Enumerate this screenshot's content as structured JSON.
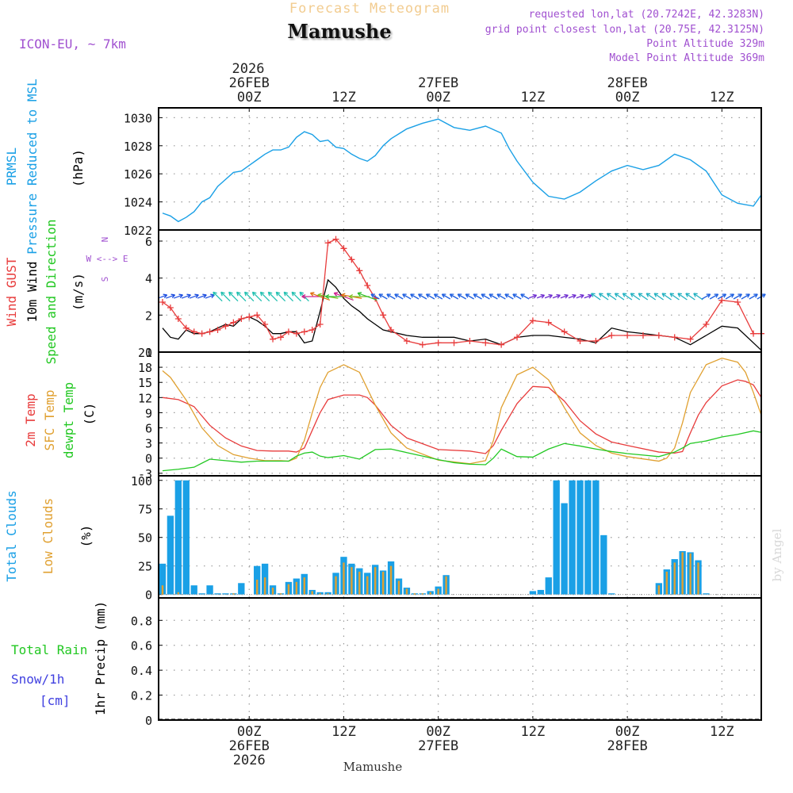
{
  "header": {
    "subtitle": "Forecast Meteogram",
    "location": "Mamushe",
    "model": "ICON-EU, ~ 7km",
    "requested": "requested lon,lat (20.7242E, 42.3283N)",
    "grid_point": "grid point closest lon,lat (20.75E, 42.3125N)",
    "point_altitude": "Point Altitude 329m",
    "model_altitude": "Model Point Altitude 369m",
    "credit": "by Angel",
    "footer_location": "Mamushe"
  },
  "colors": {
    "pressure": "#1aa0e6",
    "gust": "#e83c3c",
    "wind": "#000000",
    "temp": "#e83c3c",
    "sfc_temp": "#e0a030",
    "dewpoint": "#22c822",
    "total_clouds": "#1aa0e6",
    "low_clouds": "#e0a030",
    "rain": "#22c822",
    "snow": "#4040e0",
    "labels_violet": "#a050d0"
  },
  "time_axis": {
    "top_year": "2026",
    "ticks": [
      {
        "hour": 0,
        "top": [
          "26FEB",
          "00Z"
        ],
        "bottom": [
          "00Z",
          "26FEB",
          "2026"
        ]
      },
      {
        "hour": 12,
        "top": [
          "12Z"
        ],
        "bottom": [
          "12Z"
        ]
      },
      {
        "hour": 24,
        "top": [
          "27FEB",
          "00Z"
        ],
        "bottom": [
          "00Z",
          "27FEB"
        ]
      },
      {
        "hour": 36,
        "top": [
          "12Z"
        ],
        "bottom": [
          "12Z"
        ]
      },
      {
        "hour": 48,
        "top": [
          "28FEB",
          "00Z"
        ],
        "bottom": [
          "00Z",
          "28FEB"
        ]
      },
      {
        "hour": 60,
        "top": [
          "12Z"
        ],
        "bottom": [
          "12Z"
        ]
      }
    ],
    "start_hour": -11.5,
    "end_hour": 65
  },
  "chart_data": [
    {
      "type": "line",
      "panel": "pressure",
      "ylabel_lines": [
        "PRMSL",
        "Pressure Reduced to MSL"
      ],
      "unit": "(hPa)",
      "ylim": [
        1022,
        1030.7
      ],
      "yticks": [
        1022,
        1024,
        1026,
        1028,
        1030
      ],
      "x": [
        -11,
        -10,
        -9,
        -8,
        -7,
        -6,
        -5,
        -4,
        -3,
        -2,
        -1,
        0,
        1,
        2,
        3,
        4,
        5,
        6,
        7,
        8,
        9,
        10,
        11,
        12,
        13,
        14,
        15,
        16,
        17,
        18,
        20,
        22,
        24,
        26,
        28,
        30,
        32,
        33,
        34,
        36,
        37,
        38,
        40,
        42,
        44,
        46,
        48,
        50,
        52,
        54,
        56,
        58,
        60,
        62,
        64,
        65
      ],
      "values": [
        1023.2,
        1023.0,
        1022.6,
        1022.9,
        1023.3,
        1024.0,
        1024.3,
        1025.1,
        1025.6,
        1026.1,
        1026.2,
        1026.6,
        1027.0,
        1027.4,
        1027.7,
        1027.7,
        1027.9,
        1028.6,
        1029.0,
        1028.8,
        1028.3,
        1028.4,
        1027.9,
        1027.8,
        1027.4,
        1027.1,
        1026.9,
        1027.3,
        1028.0,
        1028.5,
        1029.2,
        1029.6,
        1029.9,
        1029.3,
        1029.1,
        1029.4,
        1028.9,
        1027.8,
        1026.9,
        1025.4,
        1024.9,
        1024.4,
        1024.2,
        1024.7,
        1025.5,
        1026.2,
        1026.6,
        1026.3,
        1026.6,
        1027.4,
        1027.0,
        1026.2,
        1024.5,
        1023.9,
        1023.7,
        1024.5
      ]
    },
    {
      "type": "line",
      "panel": "wind",
      "ylabel_lines": [
        "Wind GUST",
        "10m Wind",
        "Speed and Direction"
      ],
      "unit": "(m/s)",
      "compass": [
        "N",
        "W <--> E",
        "S"
      ],
      "ylim": [
        0,
        6.6
      ],
      "yticks": [
        0,
        2,
        4,
        6
      ],
      "series": [
        {
          "name": "Wind GUST",
          "x": [
            -11,
            -10,
            -9,
            -8,
            -7,
            -6,
            -5,
            -4,
            -3,
            -2,
            -1,
            0,
            1,
            2,
            3,
            4,
            5,
            6,
            7,
            8,
            9,
            10,
            11,
            12,
            13,
            14,
            15,
            16,
            17,
            18,
            20,
            22,
            24,
            26,
            28,
            30,
            32,
            34,
            36,
            38,
            40,
            42,
            44,
            46,
            48,
            50,
            52,
            54,
            56,
            58,
            60,
            62,
            64,
            65
          ],
          "values": [
            2.7,
            2.4,
            1.8,
            1.3,
            1.1,
            1.0,
            1.1,
            1.2,
            1.4,
            1.6,
            1.8,
            1.9,
            2.0,
            1.5,
            0.7,
            0.8,
            1.1,
            1.0,
            1.1,
            1.2,
            1.5,
            5.9,
            6.1,
            5.6,
            5.0,
            4.4,
            3.6,
            2.9,
            2.0,
            1.2,
            0.6,
            0.4,
            0.5,
            0.5,
            0.6,
            0.5,
            0.4,
            0.8,
            1.7,
            1.6,
            1.1,
            0.6,
            0.6,
            0.9,
            0.9,
            0.9,
            0.9,
            0.8,
            0.7,
            1.5,
            2.8,
            2.7,
            1.0,
            1.0
          ]
        },
        {
          "name": "10m Wind",
          "x": [
            -11,
            -10,
            -9,
            -8,
            -7,
            -6,
            -5,
            -4,
            -3,
            -2,
            -1,
            0,
            1,
            2,
            3,
            4,
            5,
            6,
            7,
            8,
            9,
            10,
            11,
            12,
            13,
            14,
            15,
            16,
            17,
            18,
            20,
            22,
            24,
            26,
            28,
            30,
            32,
            34,
            36,
            38,
            40,
            42,
            44,
            46,
            48,
            50,
            52,
            54,
            56,
            58,
            60,
            62,
            64,
            65
          ],
          "values": [
            1.3,
            0.8,
            0.7,
            1.2,
            1.0,
            1.0,
            1.1,
            1.3,
            1.5,
            1.4,
            1.8,
            1.9,
            1.7,
            1.4,
            1.0,
            1.0,
            1.1,
            1.1,
            0.5,
            0.6,
            2.2,
            3.9,
            3.5,
            2.9,
            2.5,
            2.2,
            1.8,
            1.5,
            1.2,
            1.1,
            0.9,
            0.8,
            0.8,
            0.8,
            0.6,
            0.7,
            0.4,
            0.8,
            0.9,
            0.9,
            0.8,
            0.7,
            0.5,
            1.3,
            1.1,
            1.0,
            0.9,
            0.8,
            0.4,
            0.9,
            1.4,
            1.3,
            0.5,
            0.1
          ]
        }
      ]
    },
    {
      "type": "line",
      "panel": "temperature",
      "ylabel_lines": [
        "2m Temp",
        "SFC Temp",
        "dewpt Temp"
      ],
      "unit": "(C)",
      "ylim": [
        -3.5,
        21
      ],
      "yticks": [
        -3,
        0,
        3,
        6,
        9,
        12,
        15,
        18,
        21
      ],
      "series": [
        {
          "name": "2m Temp",
          "x": [
            -11,
            -9,
            -7,
            -5,
            -3,
            -1,
            1,
            3,
            5,
            6,
            7,
            8,
            9,
            10,
            12,
            14,
            15,
            16,
            18,
            20,
            24,
            28,
            30,
            31,
            32,
            34,
            36,
            38,
            40,
            42,
            44,
            46,
            48,
            52,
            54,
            55,
            56,
            57,
            58,
            60,
            62,
            63,
            64,
            65
          ],
          "values": [
            12.0,
            11.6,
            10.2,
            6.5,
            4.0,
            2.4,
            1.5,
            1.4,
            1.4,
            1.2,
            2.0,
            5.5,
            9.0,
            11.6,
            12.5,
            12.5,
            12.0,
            10.5,
            6.5,
            4.0,
            1.7,
            1.4,
            0.9,
            2.5,
            5.5,
            10.8,
            14.2,
            14.0,
            11.3,
            7.4,
            4.8,
            3.2,
            2.5,
            1.2,
            1.0,
            1.3,
            5.0,
            8.5,
            11.0,
            14.3,
            15.5,
            15.2,
            14.5,
            12.0
          ]
        },
        {
          "name": "SFC Temp",
          "x": [
            -11,
            -10,
            -8,
            -6,
            -4,
            -2,
            0,
            2,
            4,
            5,
            6,
            7,
            8,
            9,
            10,
            12,
            14,
            16,
            18,
            20,
            24,
            28,
            30,
            31,
            32,
            34,
            36,
            38,
            40,
            42,
            44,
            46,
            48,
            52,
            53,
            54,
            55,
            56,
            58,
            60,
            62,
            63,
            64,
            65
          ],
          "values": [
            17.3,
            16.0,
            11.5,
            6.0,
            2.5,
            0.7,
            0.0,
            -0.5,
            -0.5,
            -0.6,
            0.0,
            3.5,
            9.0,
            14.0,
            17.0,
            18.5,
            17.0,
            10.5,
            5.0,
            2.0,
            -0.4,
            -1.1,
            -0.5,
            3.5,
            10.0,
            16.5,
            18.0,
            15.5,
            10.0,
            5.0,
            2.5,
            1.0,
            0.3,
            -0.6,
            0.0,
            2.0,
            7.0,
            13.0,
            18.5,
            19.8,
            19.0,
            17.0,
            13.0,
            8.5
          ]
        },
        {
          "name": "dewpt Temp",
          "x": [
            -11,
            -9,
            -7,
            -5,
            -3,
            -1,
            1,
            3,
            5,
            6,
            7,
            8,
            9,
            10,
            12,
            14,
            16,
            18,
            20,
            22,
            24,
            26,
            28,
            30,
            31,
            32,
            34,
            36,
            38,
            40,
            42,
            44,
            46,
            48,
            50,
            52,
            54,
            55,
            56,
            58,
            60,
            62,
            64,
            65
          ],
          "values": [
            -2.5,
            -2.2,
            -1.8,
            -0.2,
            -0.5,
            -0.8,
            -0.6,
            -0.6,
            -0.6,
            0.4,
            1.0,
            1.2,
            0.4,
            0.1,
            0.5,
            -0.2,
            1.7,
            1.8,
            1.1,
            0.4,
            -0.3,
            -0.9,
            -1.2,
            -1.3,
            0.0,
            1.8,
            0.3,
            0.2,
            1.8,
            2.9,
            2.4,
            1.8,
            1.3,
            0.9,
            0.6,
            0.3,
            1.2,
            2.0,
            2.9,
            3.4,
            4.2,
            4.7,
            5.4,
            5.1
          ]
        }
      ]
    },
    {
      "type": "bar",
      "panel": "clouds",
      "ylabel_lines": [
        "Total Clouds",
        "Low Clouds"
      ],
      "unit": "(%)",
      "ylim": [
        -3,
        104
      ],
      "yticks": [
        0,
        25,
        50,
        75,
        100
      ],
      "series": [
        {
          "name": "Total Clouds",
          "x": [
            -11,
            -10,
            -9,
            -8,
            -7,
            -6,
            -5,
            -4,
            -3,
            -2,
            -1,
            0,
            1,
            2,
            3,
            4,
            5,
            6,
            7,
            8,
            9,
            10,
            11,
            12,
            13,
            14,
            15,
            16,
            17,
            18,
            19,
            20,
            21,
            22,
            23,
            24,
            25,
            36,
            37,
            38,
            39,
            40,
            41,
            42,
            43,
            44,
            45,
            46,
            52,
            53,
            54,
            55,
            56,
            57,
            58
          ],
          "values": [
            27,
            69,
            100,
            100,
            8,
            1,
            8,
            1,
            1,
            1,
            10,
            0,
            25,
            27,
            8,
            1,
            11,
            14,
            18,
            4,
            2,
            2,
            19,
            33,
            27,
            23,
            19,
            26,
            21,
            29,
            14,
            6,
            1,
            1,
            3,
            7,
            17,
            3,
            4,
            15,
            100,
            80,
            100,
            100,
            100,
            100,
            52,
            1,
            10,
            22,
            31,
            38,
            37,
            30,
            1
          ]
        },
        {
          "name": "Low Clouds",
          "x": [
            -11,
            -9,
            -2,
            0,
            1,
            2,
            3,
            4,
            5,
            6,
            7,
            8,
            9,
            10,
            11,
            12,
            13,
            14,
            15,
            16,
            17,
            18,
            19,
            20,
            21,
            22,
            23,
            24,
            25,
            52,
            53,
            54,
            55,
            56,
            57
          ],
          "values": [
            8,
            2,
            1,
            0,
            13,
            15,
            6,
            1,
            9,
            11,
            15,
            3,
            1,
            1,
            16,
            28,
            24,
            20,
            16,
            24,
            20,
            25,
            12,
            5,
            1,
            1,
            2,
            5,
            16,
            8,
            20,
            28,
            37,
            36,
            28
          ]
        }
      ]
    },
    {
      "type": "bar",
      "panel": "precipitation",
      "ylabel_lines": [
        "Total Rain",
        "Snow/1h",
        "[cm]"
      ],
      "unit": "1hr Precip (mm)",
      "ylim": [
        0,
        0.98
      ],
      "yticks": [
        0,
        0.2,
        0.4,
        0.6,
        0.8
      ],
      "ytick_labels": [
        "0",
        "0.2",
        "0.4",
        "0.6",
        "0.8"
      ],
      "series": [
        {
          "name": "Total Rain",
          "x": [],
          "values": []
        },
        {
          "name": "Snow/1h",
          "x": [],
          "values": []
        }
      ]
    }
  ]
}
